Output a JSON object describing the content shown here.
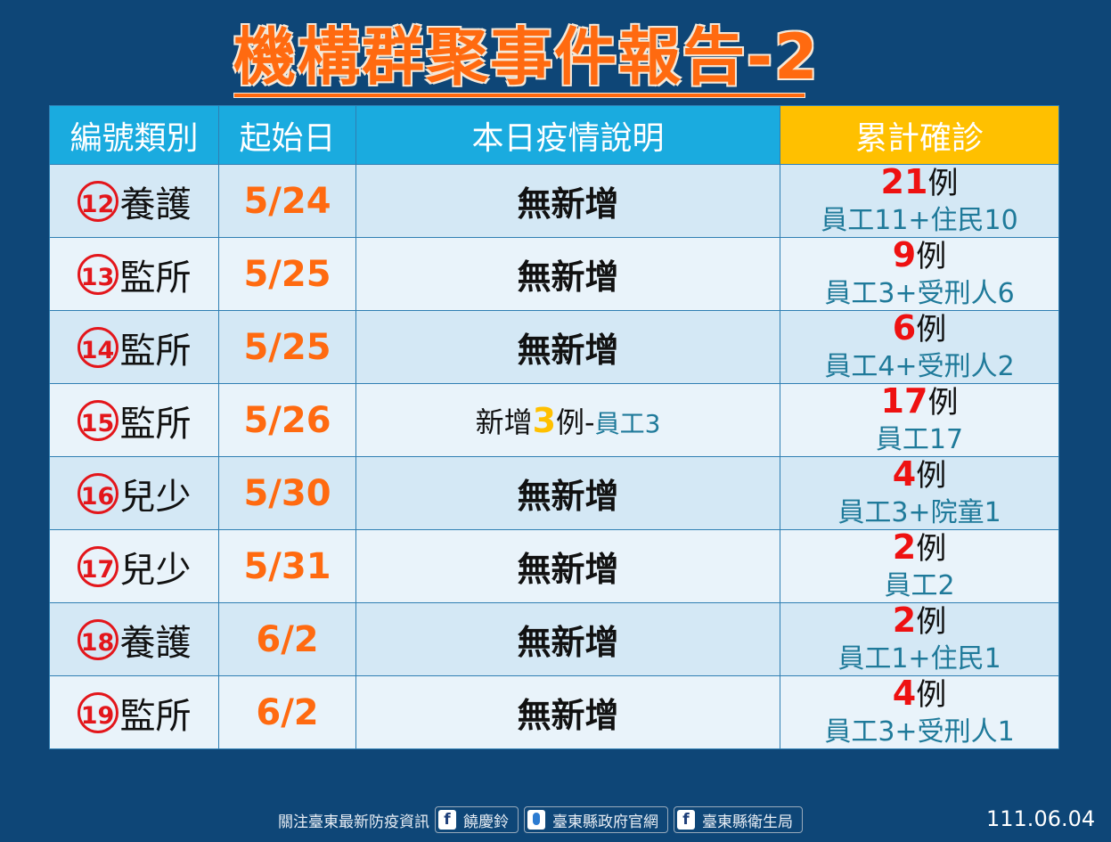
{
  "title": "機構群聚事件報告-2",
  "headers": [
    "編號類別",
    "起始日",
    "本日疫情說明",
    "累計確診"
  ],
  "rows": [
    {
      "no": "12",
      "type": "養護",
      "start": "5/24",
      "desc": "無新增",
      "total": "21",
      "unit": "例",
      "detail": "員工11+住民10"
    },
    {
      "no": "13",
      "type": "監所",
      "start": "5/25",
      "desc": "無新增",
      "total": "9",
      "unit": "例",
      "detail": "員工3+受刑人6"
    },
    {
      "no": "14",
      "type": "監所",
      "start": "5/25",
      "desc": "無新增",
      "total": "6",
      "unit": "例",
      "detail": "員工4+受刑人2"
    },
    {
      "no": "15",
      "type": "監所",
      "start": "5/26",
      "desc_prefix": "新增",
      "desc_num": "3",
      "desc_unit": "例-",
      "desc_detail": "員工3",
      "total": "17",
      "unit": "例",
      "detail": "員工17"
    },
    {
      "no": "16",
      "type": "兒少",
      "start": "5/30",
      "desc": "無新增",
      "total": "4",
      "unit": "例",
      "detail": "員工3+院童1"
    },
    {
      "no": "17",
      "type": "兒少",
      "start": "5/31",
      "desc": "無新增",
      "total": "2",
      "unit": "例",
      "detail": "員工2"
    },
    {
      "no": "18",
      "type": "養護",
      "start": "6/2",
      "desc": "無新增",
      "total": "2",
      "unit": "例",
      "detail": "員工1+住民1"
    },
    {
      "no": "19",
      "type": "監所",
      "start": "6/2",
      "desc": "無新增",
      "total": "4",
      "unit": "例",
      "detail": "員工3+受刑人1"
    }
  ],
  "footer": {
    "follow": "關注臺東最新防疫資訊",
    "fb_icon": "f",
    "links": [
      "饒慶鈴",
      "臺東縣政府官網",
      "臺東縣衛生局"
    ]
  },
  "date": "111.06.04"
}
